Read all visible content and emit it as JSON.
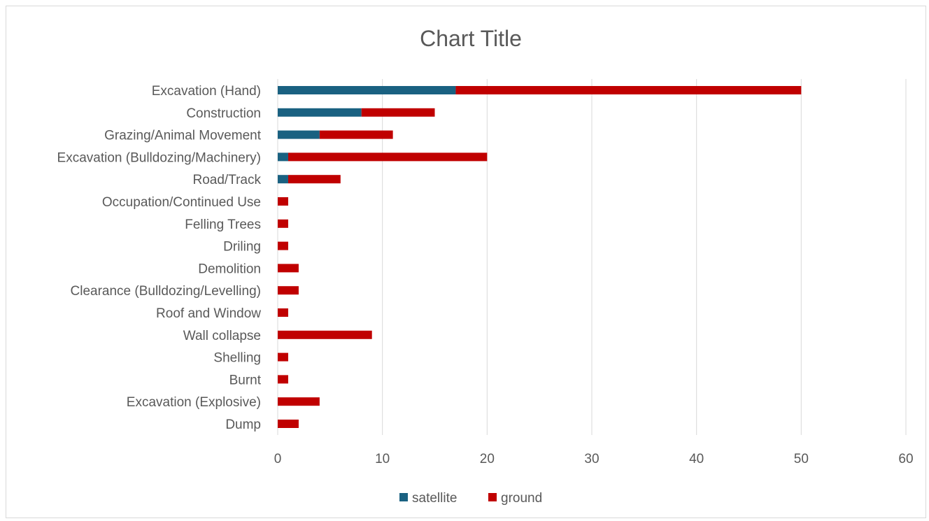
{
  "chart_data": {
    "type": "bar",
    "orientation": "horizontal",
    "stacked": true,
    "title": "Chart Title",
    "xlabel": "",
    "ylabel": "",
    "xlim": [
      0,
      60
    ],
    "x_ticks": [
      0,
      10,
      20,
      30,
      40,
      50,
      60
    ],
    "grid": "vertical",
    "legend_position": "bottom",
    "categories": [
      "Excavation (Hand)",
      "Construction",
      "Grazing/Animal Movement",
      "Excavation (Bulldozing/Machinery)",
      "Road/Track",
      "Occupation/Continued Use",
      "Felling Trees",
      "Driling",
      "Demolition",
      "Clearance (Bulldozing/Levelling)",
      "Roof and Window",
      "Wall collapse",
      "Shelling",
      "Burnt",
      "Excavation (Explosive)",
      "Dump"
    ],
    "series": [
      {
        "name": "satellite",
        "color": "#1a6181",
        "values": [
          17,
          8,
          4,
          1,
          1,
          0,
          0,
          0,
          0,
          0,
          0,
          0,
          0,
          0,
          0,
          0
        ]
      },
      {
        "name": "ground",
        "color": "#c00000",
        "values": [
          33,
          7,
          7,
          19,
          5,
          1,
          1,
          1,
          2,
          2,
          1,
          9,
          1,
          1,
          4,
          2
        ]
      }
    ]
  }
}
